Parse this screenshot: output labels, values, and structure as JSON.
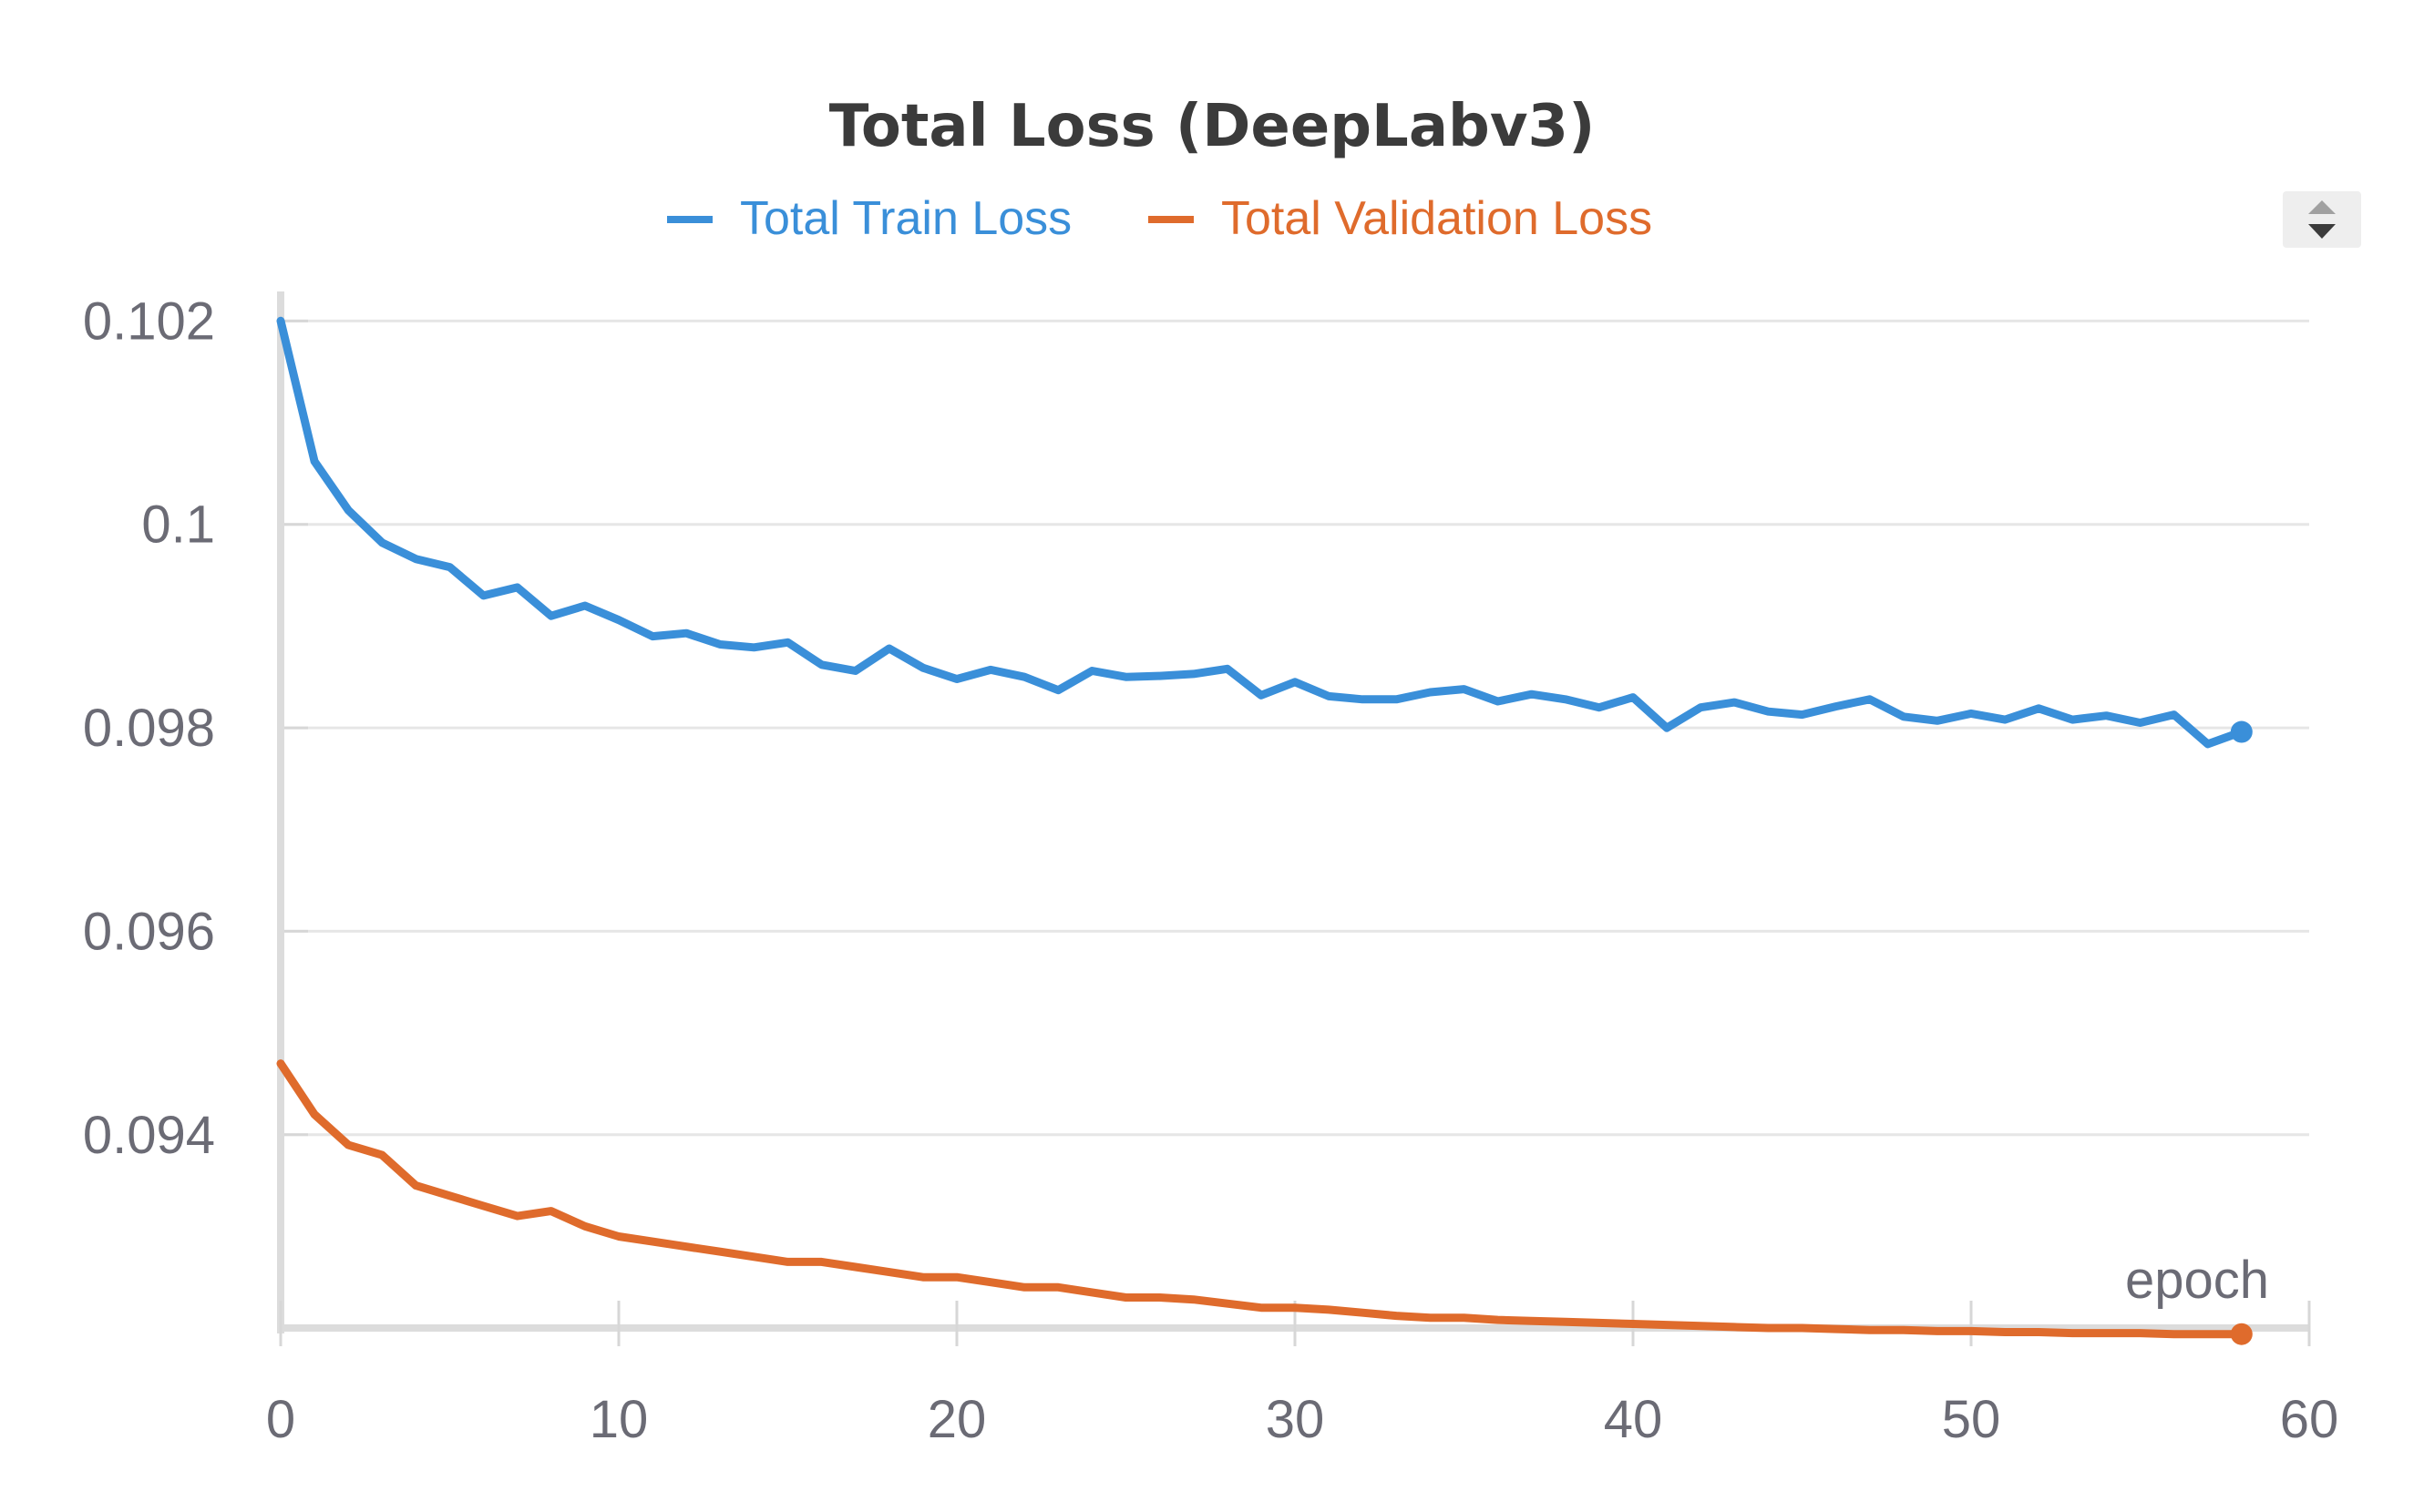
{
  "chart_data": {
    "type": "line",
    "title": "Total Loss (DeepLabv3)",
    "xlabel": "epoch",
    "ylabel": "",
    "xlim": [
      0,
      60
    ],
    "ylim": [
      0.0921,
      0.1022
    ],
    "x_ticks": [
      0,
      10,
      20,
      30,
      40,
      50,
      60
    ],
    "x_tick_labels": [
      "0",
      "10",
      "20",
      "30",
      "40",
      "50",
      "60"
    ],
    "y_ticks": [
      0.094,
      0.096,
      0.098,
      0.1,
      0.102
    ],
    "y_tick_labels": [
      "0.094",
      "0.096",
      "0.098",
      "0.1",
      "0.102"
    ],
    "grid": true,
    "legend_position": "top-center",
    "x": [
      0,
      1,
      2,
      3,
      4,
      5,
      6,
      7,
      8,
      9,
      10,
      11,
      12,
      13,
      14,
      15,
      16,
      17,
      18,
      19,
      20,
      21,
      22,
      23,
      24,
      25,
      26,
      27,
      28,
      29,
      30,
      31,
      32,
      33,
      34,
      35,
      36,
      37,
      38,
      39,
      40,
      41,
      42,
      43,
      44,
      45,
      46,
      47,
      48,
      49,
      50,
      51,
      52,
      53,
      54,
      55,
      56,
      57,
      58
    ],
    "series": [
      {
        "name": "Total Train Loss",
        "color": "#3a8fd9",
        "values": [
          0.102,
          0.10062,
          0.10014,
          0.09982,
          0.09966,
          0.09958,
          0.0993,
          0.09938,
          0.0991,
          0.0992,
          0.09906,
          0.0989,
          0.09893,
          0.09882,
          0.09879,
          0.09884,
          0.09862,
          0.09856,
          0.09878,
          0.09859,
          0.09848,
          0.09857,
          0.0985,
          0.09837,
          0.09856,
          0.0985,
          0.09851,
          0.09853,
          0.09858,
          0.09832,
          0.09845,
          0.09831,
          0.09828,
          0.09828,
          0.09835,
          0.09838,
          0.09826,
          0.09833,
          0.09828,
          0.0982,
          0.0983,
          0.098,
          0.0982,
          0.09825,
          0.09816,
          0.09813,
          0.09821,
          0.09828,
          0.09811,
          0.09807,
          0.09814,
          0.09808,
          0.09819,
          0.09808,
          0.09812,
          0.09805,
          0.09813,
          0.09784,
          0.09796
        ]
      },
      {
        "name": "Total Validation Loss",
        "color": "#df6b2c",
        "values": [
          0.0947,
          0.0942,
          0.0939,
          0.0938,
          0.0935,
          0.0934,
          0.0933,
          0.0932,
          0.09325,
          0.0931,
          0.093,
          0.09295,
          0.0929,
          0.09285,
          0.0928,
          0.09275,
          0.09275,
          0.0927,
          0.09265,
          0.0926,
          0.0926,
          0.09255,
          0.0925,
          0.0925,
          0.09245,
          0.0924,
          0.0924,
          0.09238,
          0.09234,
          0.0923,
          0.0923,
          0.09228,
          0.09225,
          0.09222,
          0.0922,
          0.0922,
          0.09218,
          0.09217,
          0.09216,
          0.09215,
          0.09214,
          0.09213,
          0.09212,
          0.09211,
          0.0921,
          0.0921,
          0.09209,
          0.09208,
          0.09208,
          0.09207,
          0.09207,
          0.09206,
          0.09206,
          0.09205,
          0.09205,
          0.09205,
          0.09204,
          0.09204,
          0.09204
        ]
      }
    ]
  },
  "legend_scroll_icon": "sort-arrows-icon"
}
